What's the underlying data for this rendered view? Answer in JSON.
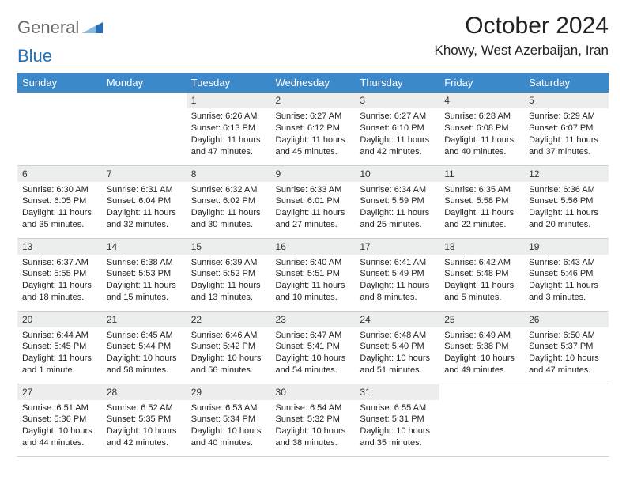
{
  "brand": {
    "general": "General",
    "blue": "Blue"
  },
  "title": "October 2024",
  "location": "Khowy, West Azerbaijan, Iran",
  "colors": {
    "header_bg": "#3b89ca",
    "header_text": "#ffffff",
    "daynum_bg": "#eceded",
    "border": "#cfcfcf",
    "brand_gray": "#6a6a6a",
    "brand_blue": "#2670b8"
  },
  "weekdays": [
    "Sunday",
    "Monday",
    "Tuesday",
    "Wednesday",
    "Thursday",
    "Friday",
    "Saturday"
  ],
  "weeks": [
    [
      null,
      null,
      {
        "n": "1",
        "sr": "Sunrise: 6:26 AM",
        "ss": "Sunset: 6:13 PM",
        "dl": "Daylight: 11 hours and 47 minutes."
      },
      {
        "n": "2",
        "sr": "Sunrise: 6:27 AM",
        "ss": "Sunset: 6:12 PM",
        "dl": "Daylight: 11 hours and 45 minutes."
      },
      {
        "n": "3",
        "sr": "Sunrise: 6:27 AM",
        "ss": "Sunset: 6:10 PM",
        "dl": "Daylight: 11 hours and 42 minutes."
      },
      {
        "n": "4",
        "sr": "Sunrise: 6:28 AM",
        "ss": "Sunset: 6:08 PM",
        "dl": "Daylight: 11 hours and 40 minutes."
      },
      {
        "n": "5",
        "sr": "Sunrise: 6:29 AM",
        "ss": "Sunset: 6:07 PM",
        "dl": "Daylight: 11 hours and 37 minutes."
      }
    ],
    [
      {
        "n": "6",
        "sr": "Sunrise: 6:30 AM",
        "ss": "Sunset: 6:05 PM",
        "dl": "Daylight: 11 hours and 35 minutes."
      },
      {
        "n": "7",
        "sr": "Sunrise: 6:31 AM",
        "ss": "Sunset: 6:04 PM",
        "dl": "Daylight: 11 hours and 32 minutes."
      },
      {
        "n": "8",
        "sr": "Sunrise: 6:32 AM",
        "ss": "Sunset: 6:02 PM",
        "dl": "Daylight: 11 hours and 30 minutes."
      },
      {
        "n": "9",
        "sr": "Sunrise: 6:33 AM",
        "ss": "Sunset: 6:01 PM",
        "dl": "Daylight: 11 hours and 27 minutes."
      },
      {
        "n": "10",
        "sr": "Sunrise: 6:34 AM",
        "ss": "Sunset: 5:59 PM",
        "dl": "Daylight: 11 hours and 25 minutes."
      },
      {
        "n": "11",
        "sr": "Sunrise: 6:35 AM",
        "ss": "Sunset: 5:58 PM",
        "dl": "Daylight: 11 hours and 22 minutes."
      },
      {
        "n": "12",
        "sr": "Sunrise: 6:36 AM",
        "ss": "Sunset: 5:56 PM",
        "dl": "Daylight: 11 hours and 20 minutes."
      }
    ],
    [
      {
        "n": "13",
        "sr": "Sunrise: 6:37 AM",
        "ss": "Sunset: 5:55 PM",
        "dl": "Daylight: 11 hours and 18 minutes."
      },
      {
        "n": "14",
        "sr": "Sunrise: 6:38 AM",
        "ss": "Sunset: 5:53 PM",
        "dl": "Daylight: 11 hours and 15 minutes."
      },
      {
        "n": "15",
        "sr": "Sunrise: 6:39 AM",
        "ss": "Sunset: 5:52 PM",
        "dl": "Daylight: 11 hours and 13 minutes."
      },
      {
        "n": "16",
        "sr": "Sunrise: 6:40 AM",
        "ss": "Sunset: 5:51 PM",
        "dl": "Daylight: 11 hours and 10 minutes."
      },
      {
        "n": "17",
        "sr": "Sunrise: 6:41 AM",
        "ss": "Sunset: 5:49 PM",
        "dl": "Daylight: 11 hours and 8 minutes."
      },
      {
        "n": "18",
        "sr": "Sunrise: 6:42 AM",
        "ss": "Sunset: 5:48 PM",
        "dl": "Daylight: 11 hours and 5 minutes."
      },
      {
        "n": "19",
        "sr": "Sunrise: 6:43 AM",
        "ss": "Sunset: 5:46 PM",
        "dl": "Daylight: 11 hours and 3 minutes."
      }
    ],
    [
      {
        "n": "20",
        "sr": "Sunrise: 6:44 AM",
        "ss": "Sunset: 5:45 PM",
        "dl": "Daylight: 11 hours and 1 minute."
      },
      {
        "n": "21",
        "sr": "Sunrise: 6:45 AM",
        "ss": "Sunset: 5:44 PM",
        "dl": "Daylight: 10 hours and 58 minutes."
      },
      {
        "n": "22",
        "sr": "Sunrise: 6:46 AM",
        "ss": "Sunset: 5:42 PM",
        "dl": "Daylight: 10 hours and 56 minutes."
      },
      {
        "n": "23",
        "sr": "Sunrise: 6:47 AM",
        "ss": "Sunset: 5:41 PM",
        "dl": "Daylight: 10 hours and 54 minutes."
      },
      {
        "n": "24",
        "sr": "Sunrise: 6:48 AM",
        "ss": "Sunset: 5:40 PM",
        "dl": "Daylight: 10 hours and 51 minutes."
      },
      {
        "n": "25",
        "sr": "Sunrise: 6:49 AM",
        "ss": "Sunset: 5:38 PM",
        "dl": "Daylight: 10 hours and 49 minutes."
      },
      {
        "n": "26",
        "sr": "Sunrise: 6:50 AM",
        "ss": "Sunset: 5:37 PM",
        "dl": "Daylight: 10 hours and 47 minutes."
      }
    ],
    [
      {
        "n": "27",
        "sr": "Sunrise: 6:51 AM",
        "ss": "Sunset: 5:36 PM",
        "dl": "Daylight: 10 hours and 44 minutes."
      },
      {
        "n": "28",
        "sr": "Sunrise: 6:52 AM",
        "ss": "Sunset: 5:35 PM",
        "dl": "Daylight: 10 hours and 42 minutes."
      },
      {
        "n": "29",
        "sr": "Sunrise: 6:53 AM",
        "ss": "Sunset: 5:34 PM",
        "dl": "Daylight: 10 hours and 40 minutes."
      },
      {
        "n": "30",
        "sr": "Sunrise: 6:54 AM",
        "ss": "Sunset: 5:32 PM",
        "dl": "Daylight: 10 hours and 38 minutes."
      },
      {
        "n": "31",
        "sr": "Sunrise: 6:55 AM",
        "ss": "Sunset: 5:31 PM",
        "dl": "Daylight: 10 hours and 35 minutes."
      },
      null,
      null
    ]
  ]
}
